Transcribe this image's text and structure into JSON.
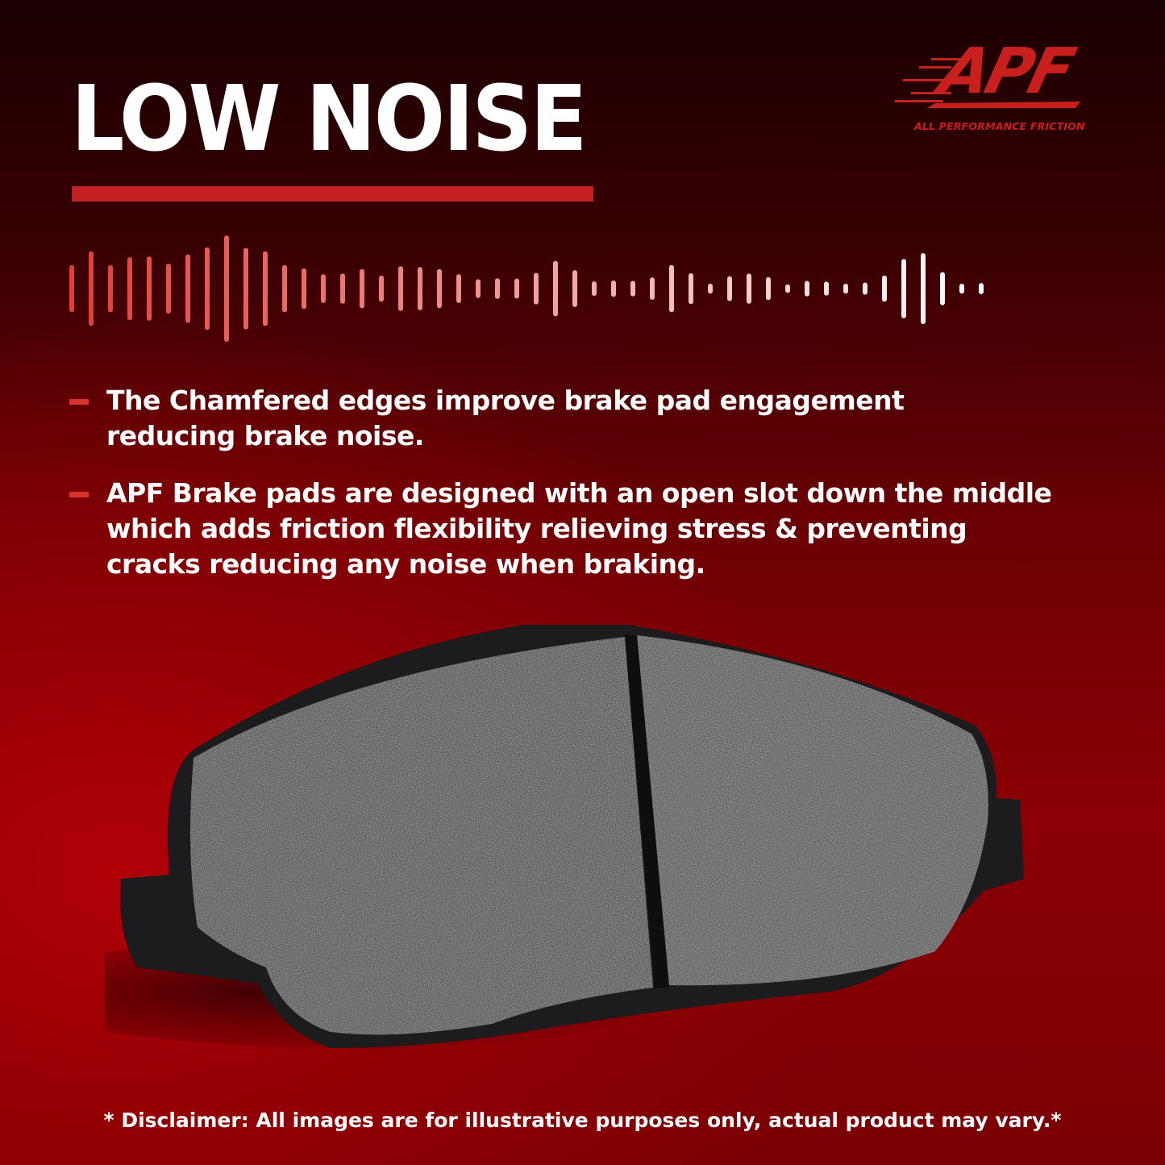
{
  "title": "LOW NOISE",
  "brand": {
    "logo_text": "APF",
    "tagline": "ALL PERFORMANCE FRICTION",
    "color": "#c9201e"
  },
  "accent_color": "#c4201f",
  "bullets": [
    {
      "text": "The Chamfered edges improve brake pad engagement\nreducing brake noise."
    },
    {
      "text": "APF Brake pads are designed with an open slot down the middle\nwhich adds friction flexibility relieving stress & preventing\n cracks reducing any noise when braking."
    }
  ],
  "disclaimer": "* Disclaimer: All images are for illustrative purposes only, actual product may vary.*",
  "icons": {
    "waveform": "sound-wave-icon",
    "bullet": "dash-bullet-icon"
  }
}
